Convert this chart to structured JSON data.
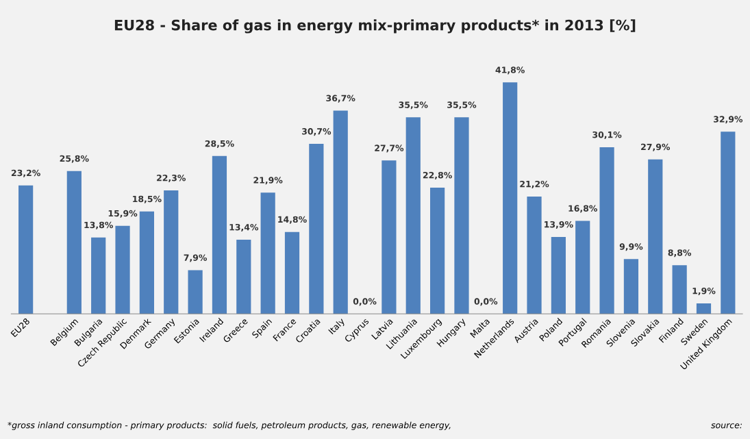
{
  "chart_data": {
    "type": "bar",
    "title": "EU28 - Share of gas in energy mix-primary products* in 2013 [%]",
    "categories": [
      "EU28",
      null,
      "Belgium",
      "Bulgaria",
      "Czech Republic",
      "Denmark",
      "Germany",
      "Estonia",
      "Ireland",
      "Greece",
      "Spain",
      "France",
      "Croatia",
      "Italy",
      "Cyprus",
      "Latvia",
      "Lithuania",
      "Luxembourg",
      "Hungary",
      "Malta",
      "Netherlands",
      "Austria",
      "Poland",
      "Portugal",
      "Romania",
      "Slovenia",
      "Slovakia",
      "Finland",
      "Sweden",
      "United Kingdom"
    ],
    "values": [
      23.2,
      null,
      25.8,
      13.8,
      15.9,
      18.5,
      22.3,
      7.9,
      28.5,
      13.4,
      21.9,
      14.8,
      30.7,
      36.7,
      0.0,
      27.7,
      35.5,
      22.8,
      35.5,
      0.0,
      41.8,
      21.2,
      13.9,
      16.8,
      30.1,
      9.9,
      27.9,
      8.8,
      1.9,
      32.9
    ],
    "value_labels": [
      "23,2%",
      null,
      "25,8%",
      "13,8%",
      "15,9%",
      "18,5%",
      "22,3%",
      "7,9%",
      "28,5%",
      "13,4%",
      "21,9%",
      "14,8%",
      "30,7%",
      "36,7%",
      "0,0%",
      "27,7%",
      "35,5%",
      "22,8%",
      "35,5%",
      "0,0%",
      "41,8%",
      "21,2%",
      "13,9%",
      "16,8%",
      "30,1%",
      "9,9%",
      "27,9%",
      "8,8%",
      "1,9%",
      "32,9%"
    ],
    "color": "#4f81bd",
    "grid": false,
    "legend": false,
    "annotations": [
      "*gross inland consumption - primary products:  solid fuels, petroleum products, gas, renewable energy,",
      "source:"
    ]
  }
}
